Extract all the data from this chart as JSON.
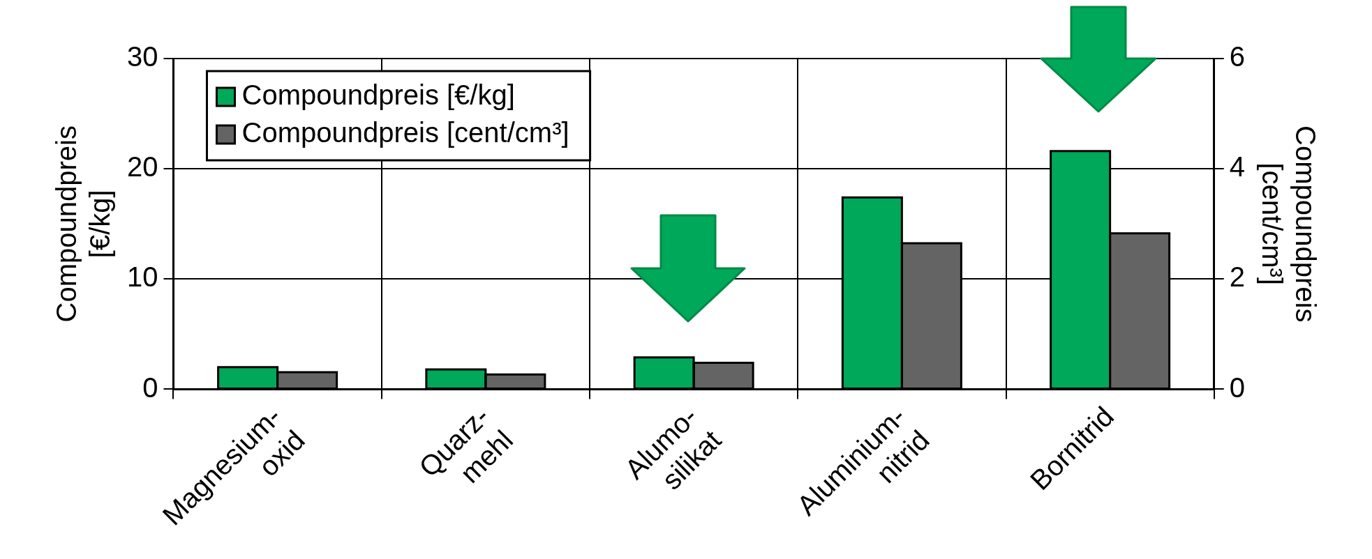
{
  "chart_data": {
    "type": "bar",
    "ylabel": "Compoundpreis [€/kg]",
    "y2label": "Compoundpreis [cent/cm³]",
    "categories": [
      "Magnesium-oxid",
      "Quarz-mehl",
      "Alumo-silikat",
      "Aluminium-nitrid",
      "Bornitrid"
    ],
    "series": [
      {
        "name": "Compoundpreis [€/kg]",
        "color": "#00a859",
        "values": [
          2.0,
          1.8,
          2.9,
          17.4,
          21.6
        ]
      },
      {
        "name": "Compoundpreis [cent/cm³]",
        "color": "#646464",
        "axis": "y2",
        "values": [
          0.31,
          0.27,
          0.48,
          2.65,
          2.83
        ]
      }
    ],
    "ylim": [
      0,
      30
    ],
    "yticks": [
      0,
      10,
      20,
      30
    ],
    "y2lim": [
      0,
      6
    ],
    "y2ticks": [
      0,
      2,
      4,
      6
    ],
    "grid": true,
    "legend": "top left"
  }
}
